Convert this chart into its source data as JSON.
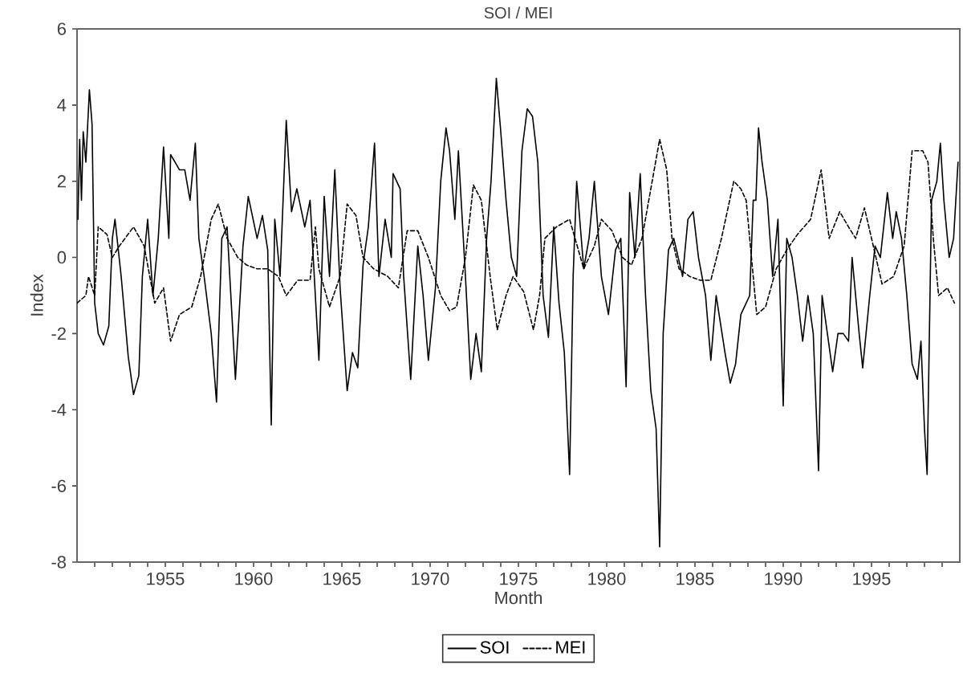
{
  "chart_data": {
    "type": "line",
    "title": "SOI / MEI",
    "xlabel": "Month",
    "ylabel": "Index",
    "xlim": [
      1950,
      2000
    ],
    "ylim": [
      -8,
      6
    ],
    "xticks": [
      {
        "value": 1951,
        "label": null
      },
      {
        "value": 1952,
        "label": null
      },
      {
        "value": 1953,
        "label": null
      },
      {
        "value": 1954,
        "label": null
      },
      1955,
      {
        "value": 1956,
        "label": null
      },
      {
        "value": 1957,
        "label": null
      },
      {
        "value": 1958,
        "label": null
      },
      {
        "value": 1959,
        "label": null
      },
      1960,
      {
        "value": 1961,
        "label": null
      },
      {
        "value": 1962,
        "label": null
      },
      {
        "value": 1963,
        "label": null
      },
      {
        "value": 1964,
        "label": null
      },
      1965,
      {
        "value": 1966,
        "label": null
      },
      {
        "value": 1967,
        "label": null
      },
      {
        "value": 1968,
        "label": null
      },
      {
        "value": 1969,
        "label": null
      },
      1970,
      {
        "value": 1971,
        "label": null
      },
      {
        "value": 1972,
        "label": null
      },
      {
        "value": 1973,
        "label": null
      },
      {
        "value": 1974,
        "label": null
      },
      1975,
      {
        "value": 1976,
        "label": null
      },
      {
        "value": 1977,
        "label": null
      },
      {
        "value": 1978,
        "label": null
      },
      {
        "value": 1979,
        "label": null
      },
      1980,
      {
        "value": 1981,
        "label": null
      },
      {
        "value": 1982,
        "label": null
      },
      {
        "value": 1983,
        "label": null
      },
      {
        "value": 1984,
        "label": null
      },
      1985,
      {
        "value": 1986,
        "label": null
      },
      {
        "value": 1987,
        "label": null
      },
      {
        "value": 1988,
        "label": null
      },
      {
        "value": 1989,
        "label": null
      },
      1990,
      {
        "value": 1991,
        "label": null
      },
      {
        "value": 1992,
        "label": null
      },
      {
        "value": 1993,
        "label": null
      },
      {
        "value": 1994,
        "label": null
      },
      1995,
      {
        "value": 1996,
        "label": null
      },
      {
        "value": 1997,
        "label": null
      },
      {
        "value": 1998,
        "label": null
      },
      {
        "value": 1999,
        "label": null
      }
    ],
    "yticks": [
      -8,
      -6,
      -4,
      -2,
      0,
      2,
      4,
      6
    ],
    "grid": false,
    "legend": "bottom",
    "marker": "none",
    "series": [
      {
        "name": "SOI",
        "color": "#000000",
        "line_style": "solid",
        "x": [
          1950.05,
          1950.15,
          1950.25,
          1950.35,
          1950.5,
          1950.7,
          1950.85,
          1951.0,
          1951.2,
          1951.5,
          1951.8,
          1952.0,
          1952.15,
          1952.5,
          1952.9,
          1953.2,
          1953.5,
          1953.7,
          1954.0,
          1954.3,
          1954.6,
          1954.9,
          1955.2,
          1955.3,
          1955.8,
          1956.1,
          1956.4,
          1956.7,
          1956.9,
          1957.2,
          1957.6,
          1957.9,
          1958.2,
          1958.5,
          1958.97,
          1959.4,
          1959.7,
          1960.2,
          1960.5,
          1960.8,
          1961.0,
          1961.2,
          1961.5,
          1961.85,
          1962.15,
          1962.45,
          1962.9,
          1963.2,
          1963.7,
          1964.0,
          1964.3,
          1964.6,
          1964.9,
          1965.3,
          1965.6,
          1965.9,
          1966.2,
          1966.5,
          1966.85,
          1967.1,
          1967.45,
          1967.8,
          1967.9,
          1968.3,
          1968.5,
          1968.9,
          1969.3,
          1969.6,
          1969.9,
          1970.3,
          1970.6,
          1970.9,
          1971.1,
          1971.4,
          1971.6,
          1972.0,
          1972.3,
          1972.6,
          1972.9,
          1973.2,
          1973.45,
          1973.75,
          1974.0,
          1974.3,
          1974.6,
          1974.9,
          1975.2,
          1975.5,
          1975.8,
          1976.1,
          1976.4,
          1976.7,
          1977.0,
          1977.3,
          1977.6,
          1977.9,
          1978.1,
          1978.3,
          1978.7,
          1979.0,
          1979.3,
          1979.7,
          1980.1,
          1980.5,
          1980.8,
          1981.1,
          1981.3,
          1981.6,
          1981.9,
          1982.2,
          1982.5,
          1982.8,
          1983.0,
          1983.2,
          1983.5,
          1983.8,
          1984.3,
          1984.6,
          1984.9,
          1985.2,
          1985.6,
          1985.9,
          1986.2,
          1986.7,
          1987.0,
          1987.3,
          1987.6,
          1988.1,
          1988.3,
          1988.45,
          1988.6,
          1988.8,
          1989.1,
          1989.4,
          1989.7,
          1990.0,
          1990.2,
          1990.5,
          1990.8,
          1991.1,
          1991.4,
          1991.7,
          1992.0,
          1992.2,
          1992.5,
          1992.8,
          1993.1,
          1993.4,
          1993.7,
          1993.9,
          1994.3,
          1994.5,
          1994.9,
          1995.2,
          1995.5,
          1995.9,
          1996.2,
          1996.4,
          1996.7,
          1997.0,
          1997.3,
          1997.6,
          1997.8,
          1998.0,
          1998.15,
          1998.4,
          1998.7,
          1998.9,
          1999.1,
          1999.4,
          1999.65,
          1999.9
        ],
        "values": [
          1.0,
          3.1,
          1.5,
          3.3,
          2.5,
          4.4,
          3.5,
          -1.2,
          -2.0,
          -2.3,
          -1.8,
          0.5,
          1.0,
          -0.5,
          -2.6,
          -3.6,
          -3.1,
          -0.5,
          1.0,
          -1.0,
          0.5,
          2.9,
          0.5,
          2.7,
          2.3,
          2.3,
          1.5,
          3.0,
          0.5,
          -0.5,
          -2.0,
          -3.8,
          0.5,
          0.8,
          -3.2,
          0.3,
          1.6,
          0.5,
          1.1,
          0.2,
          -4.4,
          1.0,
          -0.5,
          3.6,
          1.2,
          1.8,
          0.8,
          1.5,
          -2.7,
          1.6,
          -0.5,
          2.3,
          -0.8,
          -3.5,
          -2.5,
          -2.9,
          -0.2,
          0.8,
          3.0,
          -0.5,
          1.0,
          0.0,
          2.2,
          1.8,
          -0.5,
          -3.2,
          0.3,
          -1.0,
          -2.7,
          -0.8,
          2.0,
          3.4,
          2.8,
          1.0,
          2.8,
          -0.5,
          -3.2,
          -2.0,
          -3.0,
          0.5,
          2.0,
          4.7,
          3.3,
          1.5,
          0.0,
          -0.5,
          2.8,
          3.9,
          3.7,
          2.5,
          -1.0,
          -2.1,
          0.8,
          -1.2,
          -2.5,
          -5.7,
          -0.5,
          2.0,
          -0.3,
          0.5,
          2.0,
          -0.5,
          -1.5,
          0.2,
          0.5,
          -3.4,
          1.7,
          0.0,
          2.2,
          -1.0,
          -3.5,
          -4.5,
          -7.6,
          -2.0,
          0.2,
          0.5,
          -0.5,
          1.0,
          1.2,
          0.0,
          -1.0,
          -2.7,
          -1.0,
          -2.5,
          -3.3,
          -2.8,
          -1.5,
          -1.0,
          1.5,
          1.5,
          3.4,
          2.5,
          1.5,
          -0.5,
          1.0,
          -3.9,
          0.5,
          0.0,
          -1.0,
          -2.2,
          -1.0,
          -2.0,
          -5.6,
          -1.0,
          -2.0,
          -3.0,
          -2.0,
          -2.0,
          -2.2,
          0.0,
          -2.0,
          -2.9,
          -1.0,
          0.3,
          0.0,
          1.7,
          0.5,
          1.2,
          0.5,
          -1.0,
          -2.8,
          -3.2,
          -2.2,
          -4.5,
          -5.7,
          1.5,
          2.0,
          3.0,
          1.5,
          0.0,
          0.5,
          2.5
        ]
      },
      {
        "name": "MEI",
        "color": "#000000",
        "line_style": "dashed",
        "x": [
          1950.0,
          1950.5,
          1950.65,
          1951.0,
          1951.2,
          1951.7,
          1952.0,
          1952.4,
          1953.2,
          1953.8,
          1954.4,
          1954.9,
          1955.3,
          1955.8,
          1956.5,
          1957.0,
          1957.6,
          1958.0,
          1958.5,
          1959.1,
          1959.6,
          1960.2,
          1960.8,
          1961.4,
          1961.85,
          1962.5,
          1963.2,
          1963.5,
          1963.7,
          1964.3,
          1964.9,
          1965.3,
          1965.8,
          1966.2,
          1966.8,
          1967.6,
          1968.2,
          1968.7,
          1969.3,
          1969.9,
          1970.6,
          1971.1,
          1971.5,
          1972.0,
          1972.45,
          1972.9,
          1973.4,
          1973.8,
          1974.3,
          1974.7,
          1975.3,
          1975.85,
          1976.2,
          1976.5,
          1977.15,
          1977.9,
          1978.7,
          1979.3,
          1979.7,
          1980.3,
          1980.9,
          1981.4,
          1982.0,
          1982.5,
          1983.0,
          1983.4,
          1983.7,
          1984.1,
          1984.7,
          1985.3,
          1985.9,
          1986.5,
          1987.2,
          1987.6,
          1987.9,
          1988.5,
          1989.0,
          1989.6,
          1990.2,
          1990.8,
          1991.55,
          1992.15,
          1992.6,
          1993.2,
          1993.7,
          1994.1,
          1994.6,
          1995.0,
          1995.6,
          1996.25,
          1996.85,
          1997.3,
          1997.9,
          1998.2,
          1998.5,
          1998.8,
          1999.3,
          1999.7
        ],
        "values": [
          -1.2,
          -1.0,
          -0.5,
          -1.0,
          0.8,
          0.6,
          0.0,
          0.3,
          0.8,
          0.3,
          -1.2,
          -0.8,
          -2.2,
          -1.5,
          -1.3,
          -0.5,
          1.0,
          1.4,
          0.5,
          0.0,
          -0.2,
          -0.3,
          -0.3,
          -0.5,
          -1.0,
          -0.6,
          -0.6,
          0.8,
          -0.3,
          -1.3,
          -0.5,
          1.4,
          1.1,
          0.0,
          -0.3,
          -0.5,
          -0.8,
          0.7,
          0.7,
          0.0,
          -1.0,
          -1.4,
          -1.3,
          0.0,
          1.9,
          1.5,
          -0.5,
          -1.9,
          -1.0,
          -0.5,
          -0.9,
          -1.9,
          -1.0,
          0.5,
          0.8,
          1.0,
          -0.3,
          0.3,
          1.0,
          0.7,
          0.0,
          -0.2,
          0.5,
          1.8,
          3.1,
          2.3,
          0.5,
          -0.3,
          -0.5,
          -0.6,
          -0.6,
          0.5,
          2.0,
          1.8,
          1.5,
          -1.5,
          -1.3,
          -0.3,
          0.2,
          0.6,
          1.0,
          2.3,
          0.5,
          1.2,
          0.8,
          0.5,
          1.3,
          0.5,
          -0.7,
          -0.5,
          0.3,
          2.8,
          2.8,
          2.5,
          0.5,
          -1.0,
          -0.8,
          -1.2
        ]
      }
    ]
  }
}
